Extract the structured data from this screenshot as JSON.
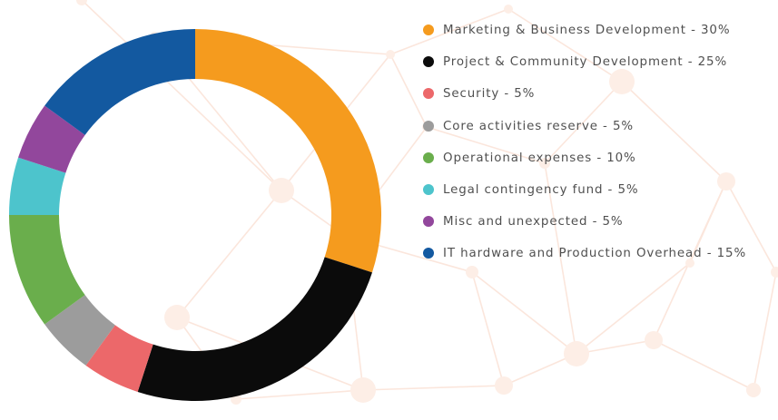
{
  "chart_data": {
    "type": "pie",
    "style": "donut",
    "legend_position": "right",
    "slices": [
      {
        "label": "Marketing & Business Development - 30%",
        "value": 30,
        "color": "#f59b1e",
        "icon": "legend-dot"
      },
      {
        "label": "Project & Community Development - 25%",
        "value": 25,
        "color": "#0b0b0b",
        "icon": "legend-dot"
      },
      {
        "label": "Security - 5%",
        "value": 5,
        "color": "#ec686a",
        "icon": "legend-dot"
      },
      {
        "label": "Core activities reserve - 5%",
        "value": 5,
        "color": "#9c9c9c",
        "icon": "legend-dot"
      },
      {
        "label": "Operational expenses - 10%",
        "value": 10,
        "color": "#6aae4c",
        "icon": "legend-dot"
      },
      {
        "label": "Legal contingency fund - 5%",
        "value": 5,
        "color": "#4dc4cc",
        "icon": "legend-dot"
      },
      {
        "label": "Misc and unexpected - 5%",
        "value": 5,
        "color": "#92479c",
        "icon": "legend-dot"
      },
      {
        "label": "IT hardware and Production Overhead - 15%",
        "value": 15,
        "color": "#1359a0",
        "icon": "legend-dot"
      }
    ]
  }
}
